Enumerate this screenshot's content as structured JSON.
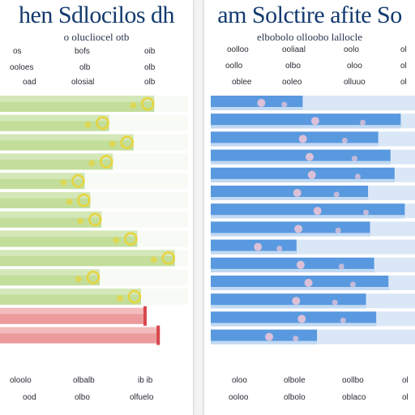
{
  "chart_data": [
    {
      "type": "bar",
      "title": "hen Sdlocilos dh",
      "subtitle": "o olucliocel otb",
      "header_rows": [
        [
          "os",
          "bofs",
          "oib"
        ],
        [
          "ooloes",
          "olb",
          "olb"
        ],
        [
          "oad",
          "olosial",
          "olb"
        ]
      ],
      "footer_rows": [
        [
          "oloolo",
          "olbalb",
          "ib ib"
        ],
        [
          "ood",
          "olbo",
          "olfuelo"
        ]
      ],
      "values": [
        0.82,
        0.58,
        0.71,
        0.6,
        0.45,
        0.48,
        0.54,
        0.73,
        0.93,
        0.53,
        0.75,
        0.78,
        0.85
      ],
      "colors": {
        "green": "#b9d889",
        "green_light": "#dcebc4",
        "red": "#e98a8c",
        "red_light": "#f6c9ca",
        "flower": "#e7d43c"
      }
    },
    {
      "type": "bar",
      "title": "am Solctire afite So",
      "subtitle": "elbobolo olloobo lallocle",
      "header_rows": [
        [
          "oolloo",
          "ooliaal",
          "oolo",
          "ol"
        ],
        [
          "oollo",
          "olbo",
          "oloo",
          "ol"
        ],
        [
          "oblee",
          "ooleo",
          "olluuo",
          "ol"
        ]
      ],
      "footer_rows": [
        [
          "oloo",
          "olbole",
          "oollbo",
          "ol"
        ],
        [
          "ooloo",
          "olbolo",
          "oblaco",
          "ol"
        ]
      ],
      "values": [
        0.45,
        0.93,
        0.82,
        0.88,
        0.9,
        0.77,
        0.95,
        0.78,
        0.42,
        0.8,
        0.87,
        0.76,
        0.81,
        0.52
      ],
      "colors": {
        "blue": "#4a90dc",
        "blue_light": "#b9d3f0",
        "blossom": "#f2c7d6"
      }
    }
  ]
}
